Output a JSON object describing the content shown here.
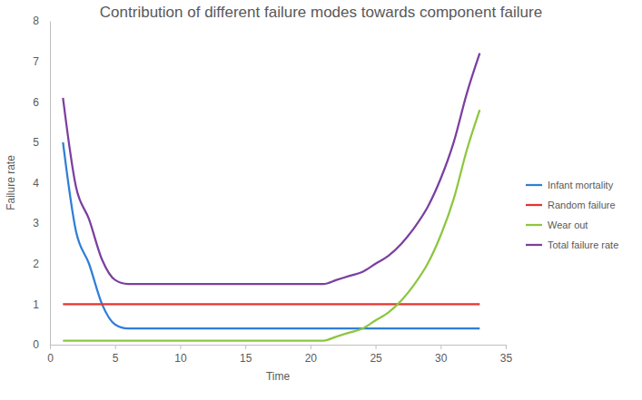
{
  "chart_data": {
    "type": "line",
    "title": "Contribution of different failure modes towards component failure",
    "x_label": "Time",
    "y_label": "Failure rate",
    "x": [
      1,
      2,
      3,
      4,
      5,
      6,
      7,
      8,
      9,
      10,
      11,
      12,
      13,
      14,
      15,
      16,
      17,
      18,
      19,
      20,
      21,
      22,
      23,
      24,
      25,
      26,
      27,
      28,
      29,
      30,
      31,
      32,
      33
    ],
    "series": [
      {
        "name": "Infant mortality",
        "color": "#2f7ed8",
        "values": [
          5,
          2.8,
          2.0,
          1.0,
          0.5,
          0.4,
          0.4,
          0.4,
          0.4,
          0.4,
          0.4,
          0.4,
          0.4,
          0.4,
          0.4,
          0.4,
          0.4,
          0.4,
          0.4,
          0.4,
          0.4,
          0.4,
          0.4,
          0.4,
          0.4,
          0.4,
          0.4,
          0.4,
          0.4,
          0.4,
          0.4,
          0.4,
          0.4
        ]
      },
      {
        "name": "Random failure",
        "color": "#e8312f",
        "values": [
          1,
          1,
          1,
          1,
          1,
          1,
          1,
          1,
          1,
          1,
          1,
          1,
          1,
          1,
          1,
          1,
          1,
          1,
          1,
          1,
          1,
          1,
          1,
          1,
          1,
          1,
          1,
          1,
          1,
          1,
          1,
          1,
          1
        ]
      },
      {
        "name": "Wear out",
        "color": "#8dc63f",
        "values": [
          0.1,
          0.1,
          0.1,
          0.1,
          0.1,
          0.1,
          0.1,
          0.1,
          0.1,
          0.1,
          0.1,
          0.1,
          0.1,
          0.1,
          0.1,
          0.1,
          0.1,
          0.1,
          0.1,
          0.1,
          0.1,
          0.2,
          0.3,
          0.4,
          0.6,
          0.8,
          1.1,
          1.5,
          2.0,
          2.7,
          3.6,
          4.8,
          5.8
        ]
      },
      {
        "name": "Total failure rate",
        "color": "#7b3fa0",
        "values": [
          6.1,
          3.9,
          3.1,
          2.1,
          1.6,
          1.5,
          1.5,
          1.5,
          1.5,
          1.5,
          1.5,
          1.5,
          1.5,
          1.5,
          1.5,
          1.5,
          1.5,
          1.5,
          1.5,
          1.5,
          1.5,
          1.6,
          1.7,
          1.8,
          2.0,
          2.2,
          2.5,
          2.9,
          3.4,
          4.1,
          5.0,
          6.2,
          7.2
        ]
      }
    ],
    "xlim": [
      0,
      35
    ],
    "xticks": [
      0,
      5,
      10,
      15,
      20,
      25,
      30,
      35
    ],
    "ylim": [
      0,
      8
    ],
    "yticks": [
      0,
      1,
      2,
      3,
      4,
      5,
      6,
      7,
      8
    ],
    "grid": false,
    "legend": "right"
  }
}
